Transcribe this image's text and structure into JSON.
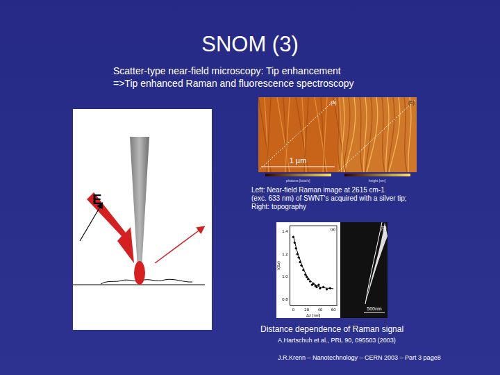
{
  "slide": {
    "title": "SNOM (3)",
    "subtitle": [
      "Scatter-type near-field microscopy: Tip enhancement",
      "=>Tip enhanced Raman and fluorescence spectroscopy"
    ],
    "footer": "J.R.Krenn – Nanotechnology – CERN 2003 – Part 3 page8"
  },
  "diagram": {
    "field_label": "E"
  },
  "images": {
    "panel_labels": [
      "(a)",
      "(b)"
    ],
    "scale_bar": "1 µm",
    "colorbar_labels": [
      "photons [kcts/s]",
      "height [nm]"
    ],
    "caption": [
      "Left: Near-field Raman image at 2615 cm-1",
      "(exc. 633 nm) of SWNT's acquired with a silver tip;",
      "Right: topography"
    ]
  },
  "chart_data": {
    "type": "scatter",
    "panel_label": "(a)",
    "x_label": "Δz [nm]",
    "y_label": "I(Δz)",
    "xlim": [
      -5,
      65
    ],
    "xticks": [
      0,
      20,
      40,
      60
    ],
    "ylim": [
      0.75,
      1.45
    ],
    "yticks": [
      0.8,
      {
        "value": 1,
        "label": "1.0"
      },
      1.2,
      1.4
    ],
    "grid": false,
    "series": [
      {
        "color": "#000000",
        "marker": "circle",
        "x": [
          0,
          2,
          4,
          6,
          8,
          10,
          12,
          15,
          18,
          20,
          22,
          25,
          28,
          30,
          33,
          35,
          38,
          40,
          45,
          50,
          55
        ],
        "values": [
          1.35,
          1.3,
          1.25,
          1.2,
          1.17,
          1.13,
          1.1,
          1.06,
          1.02,
          1,
          0.98,
          0.96,
          0.93,
          0.94,
          0.92,
          0.91,
          0.93,
          0.9,
          0.91,
          0.89,
          0.9
        ]
      },
      {
        "color": "#000000",
        "type": "line",
        "line_style": "solid",
        "x": [
          0,
          5,
          10,
          15,
          20,
          25,
          30,
          40,
          50,
          60
        ],
        "values": [
          1.36,
          1.24,
          1.15,
          1.07,
          1.01,
          0.97,
          0.94,
          0.91,
          0.9,
          0.895
        ]
      }
    ]
  },
  "sem": {
    "panel_label": "(b)",
    "scale_bar": "500nm"
  },
  "caption": "Distance dependence of Raman signal",
  "reference": "A.Hartschuh et al., PRL 90, 095503 (2003)"
}
